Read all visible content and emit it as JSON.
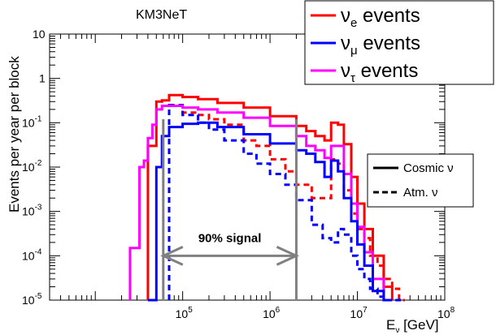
{
  "chart_data": {
    "type": "line",
    "title": "KM3NeT",
    "ylabel": "Events per year per block",
    "xlabel": {
      "base": "E",
      "sub": "ν",
      "unit": " [GeV]"
    },
    "x_scale": "log",
    "y_scale": "log",
    "xlim": [
      3000,
      100000000
    ],
    "ylim": [
      1e-05,
      10
    ],
    "x_ticks": [
      {
        "value": 100000,
        "base": "10",
        "exp": "5"
      },
      {
        "value": 1000000,
        "base": "10",
        "exp": "6"
      },
      {
        "value": 10000000,
        "base": "10",
        "exp": "7"
      },
      {
        "value": 100000000,
        "base": "10",
        "exp": "8"
      }
    ],
    "y_ticks": [
      {
        "value": 10,
        "base": "10",
        "exp": ""
      },
      {
        "value": 1,
        "base": "1",
        "exp": ""
      },
      {
        "value": 0.1,
        "base": "10",
        "exp": "-1"
      },
      {
        "value": 0.01,
        "base": "10",
        "exp": "-2"
      },
      {
        "value": 0.001,
        "base": "10",
        "exp": "-3"
      },
      {
        "value": 0.0001,
        "base": "10",
        "exp": "-4"
      },
      {
        "value": 1e-05,
        "base": "10",
        "exp": "-5"
      }
    ],
    "legend_flavour": [
      {
        "base": "ν",
        "sub": "e",
        "label": " events",
        "color": "#ff0000"
      },
      {
        "base": "ν",
        "sub": "μ",
        "label": " events",
        "color": "#0000ff"
      },
      {
        "base": "ν",
        "sub": "τ",
        "label": " events",
        "color": "#ff00ff"
      }
    ],
    "legend_type": [
      {
        "label": "Cosmic ν",
        "style": "solid"
      },
      {
        "label": "Atm. ν",
        "style": "dashed"
      }
    ],
    "annotation": {
      "text": "90% signal",
      "x_from": 60000,
      "x_to": 2000000,
      "y": 0.0001
    },
    "signal_bounds": [
      60000,
      2000000
    ],
    "series": [
      {
        "name": "ν_e cosmic",
        "color": "#ff0000",
        "style": "solid",
        "edges": [
          40000,
          50000,
          58000,
          70000,
          100000,
          150000,
          250000,
          500000,
          1000000,
          2000000,
          2600000,
          3300000,
          4200000,
          5000000,
          6000000,
          7000000,
          8500000,
          10000000,
          12000000,
          15000000,
          20000000,
          25000000
        ],
        "values": [
          0.03,
          0.3,
          0.32,
          0.42,
          0.38,
          0.34,
          0.28,
          0.22,
          0.14,
          0.085,
          0.065,
          0.05,
          0.04,
          0.1,
          0.09,
          0.033,
          0.006,
          0.0015,
          0.0004,
          0.0001,
          2e-05
        ]
      },
      {
        "name": "ν_μ cosmic",
        "color": "#0000ff",
        "style": "solid",
        "edges": [
          40000,
          50000,
          58000,
          70000,
          100000,
          150000,
          250000,
          500000,
          1000000,
          2000000,
          2600000,
          3300000,
          4200000,
          5000000,
          6000000,
          7000000,
          8500000,
          10000000,
          12000000,
          15000000,
          20000000,
          25000000
        ],
        "values": [
          1e-05,
          0.01,
          0.05,
          0.08,
          0.095,
          0.1,
          0.08,
          0.055,
          0.034,
          0.024,
          0.02,
          0.013,
          0.006,
          0.014,
          0.008,
          0.002,
          0.0006,
          0.00018,
          6e-05,
          1.6e-05,
          1e-05
        ]
      },
      {
        "name": "ν_τ cosmic",
        "color": "#ff00ff",
        "style": "solid",
        "edges": [
          25000,
          32000,
          36000,
          40000,
          45000,
          50000,
          58000,
          70000,
          100000,
          150000,
          250000,
          500000,
          1000000,
          2000000,
          2600000,
          3300000,
          4200000,
          5000000,
          6000000,
          7000000,
          8500000,
          10000000,
          12000000,
          15000000,
          20000000,
          25000000
        ],
        "values": [
          0.00015,
          0.01,
          0.014,
          0.045,
          0.09,
          0.2,
          0.24,
          0.24,
          0.22,
          0.2,
          0.17,
          0.13,
          0.085,
          0.05,
          0.03,
          0.024,
          0.016,
          0.03,
          0.03,
          0.007,
          0.0015,
          0.00045,
          0.00012,
          3e-05,
          1e-05
        ]
      },
      {
        "name": "ν_e atmospheric",
        "color": "#ff0000",
        "style": "dashed",
        "edges": [
          70000,
          100000,
          150000,
          200000,
          300000,
          500000,
          700000,
          1000000,
          1500000,
          2000000,
          3000000,
          4000000,
          5000000,
          6000000,
          7000000,
          8500000,
          10000000,
          12000000,
          14000000,
          17000000,
          20000000,
          25000000,
          30000000,
          35000000
        ],
        "values": [
          0.25,
          0.17,
          0.15,
          0.12,
          0.09,
          0.04,
          0.03,
          0.015,
          0.008,
          0.004,
          0.002,
          0.002,
          0.015,
          0.012,
          0.003,
          0.0009,
          0.0004,
          0.00025,
          0.0001,
          6e-05,
          3e-05,
          1.8e-05,
          1e-05
        ]
      },
      {
        "name": "ν_μ atmospheric",
        "color": "#0000ff",
        "style": "dashed",
        "edges": [
          70000,
          100000,
          150000,
          200000,
          300000,
          500000,
          700000,
          1000000,
          1500000,
          2000000,
          3000000,
          4000000,
          5000000,
          6000000,
          7000000,
          8500000,
          10000000,
          12000000,
          14000000,
          17000000,
          20000000,
          25000000,
          30000000,
          35000000
        ],
        "values": [
          0.25,
          0.15,
          0.1,
          0.07,
          0.04,
          0.02,
          0.012,
          0.007,
          0.004,
          0.0018,
          0.0005,
          0.00025,
          0.0002,
          0.0004,
          0.0003,
          0.0001,
          5e-05,
          3e-05,
          1.8e-05,
          1.2e-05,
          1e-05,
          1e-05,
          1e-05
        ]
      }
    ]
  }
}
